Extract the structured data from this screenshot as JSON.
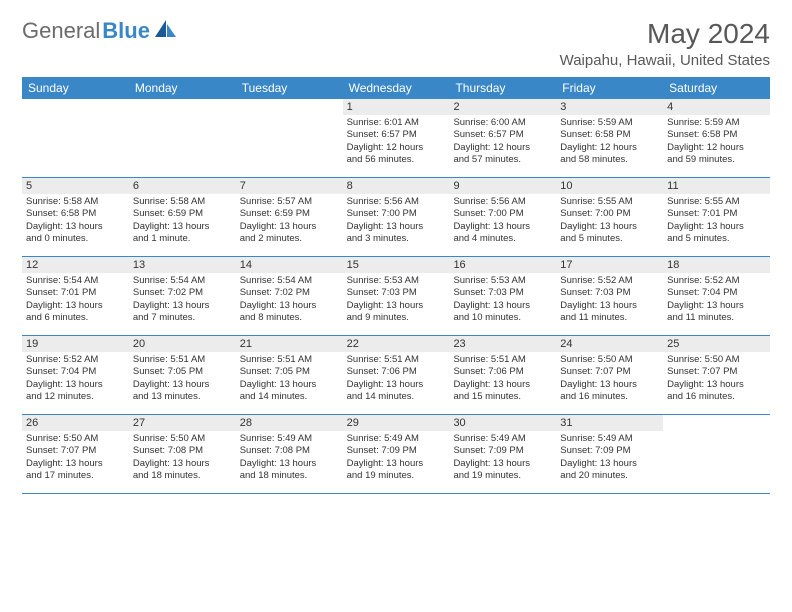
{
  "logo": {
    "part1": "General",
    "part2": "Blue"
  },
  "title": "May 2024",
  "location": "Waipahu, Hawaii, United States",
  "colors": {
    "header_bg": "#3a87c8",
    "daynum_bg": "#ececec",
    "text": "#333333",
    "title_text": "#585858"
  },
  "weekdays": [
    "Sunday",
    "Monday",
    "Tuesday",
    "Wednesday",
    "Thursday",
    "Friday",
    "Saturday"
  ],
  "weeks": [
    [
      {
        "n": "",
        "empty": true
      },
      {
        "n": "",
        "empty": true
      },
      {
        "n": "",
        "empty": true
      },
      {
        "n": "1",
        "sunrise": "Sunrise: 6:01 AM",
        "sunset": "Sunset: 6:57 PM",
        "d1": "Daylight: 12 hours",
        "d2": "and 56 minutes."
      },
      {
        "n": "2",
        "sunrise": "Sunrise: 6:00 AM",
        "sunset": "Sunset: 6:57 PM",
        "d1": "Daylight: 12 hours",
        "d2": "and 57 minutes."
      },
      {
        "n": "3",
        "sunrise": "Sunrise: 5:59 AM",
        "sunset": "Sunset: 6:58 PM",
        "d1": "Daylight: 12 hours",
        "d2": "and 58 minutes."
      },
      {
        "n": "4",
        "sunrise": "Sunrise: 5:59 AM",
        "sunset": "Sunset: 6:58 PM",
        "d1": "Daylight: 12 hours",
        "d2": "and 59 minutes."
      }
    ],
    [
      {
        "n": "5",
        "sunrise": "Sunrise: 5:58 AM",
        "sunset": "Sunset: 6:58 PM",
        "d1": "Daylight: 13 hours",
        "d2": "and 0 minutes."
      },
      {
        "n": "6",
        "sunrise": "Sunrise: 5:58 AM",
        "sunset": "Sunset: 6:59 PM",
        "d1": "Daylight: 13 hours",
        "d2": "and 1 minute."
      },
      {
        "n": "7",
        "sunrise": "Sunrise: 5:57 AM",
        "sunset": "Sunset: 6:59 PM",
        "d1": "Daylight: 13 hours",
        "d2": "and 2 minutes."
      },
      {
        "n": "8",
        "sunrise": "Sunrise: 5:56 AM",
        "sunset": "Sunset: 7:00 PM",
        "d1": "Daylight: 13 hours",
        "d2": "and 3 minutes."
      },
      {
        "n": "9",
        "sunrise": "Sunrise: 5:56 AM",
        "sunset": "Sunset: 7:00 PM",
        "d1": "Daylight: 13 hours",
        "d2": "and 4 minutes."
      },
      {
        "n": "10",
        "sunrise": "Sunrise: 5:55 AM",
        "sunset": "Sunset: 7:00 PM",
        "d1": "Daylight: 13 hours",
        "d2": "and 5 minutes."
      },
      {
        "n": "11",
        "sunrise": "Sunrise: 5:55 AM",
        "sunset": "Sunset: 7:01 PM",
        "d1": "Daylight: 13 hours",
        "d2": "and 5 minutes."
      }
    ],
    [
      {
        "n": "12",
        "sunrise": "Sunrise: 5:54 AM",
        "sunset": "Sunset: 7:01 PM",
        "d1": "Daylight: 13 hours",
        "d2": "and 6 minutes."
      },
      {
        "n": "13",
        "sunrise": "Sunrise: 5:54 AM",
        "sunset": "Sunset: 7:02 PM",
        "d1": "Daylight: 13 hours",
        "d2": "and 7 minutes."
      },
      {
        "n": "14",
        "sunrise": "Sunrise: 5:54 AM",
        "sunset": "Sunset: 7:02 PM",
        "d1": "Daylight: 13 hours",
        "d2": "and 8 minutes."
      },
      {
        "n": "15",
        "sunrise": "Sunrise: 5:53 AM",
        "sunset": "Sunset: 7:03 PM",
        "d1": "Daylight: 13 hours",
        "d2": "and 9 minutes."
      },
      {
        "n": "16",
        "sunrise": "Sunrise: 5:53 AM",
        "sunset": "Sunset: 7:03 PM",
        "d1": "Daylight: 13 hours",
        "d2": "and 10 minutes."
      },
      {
        "n": "17",
        "sunrise": "Sunrise: 5:52 AM",
        "sunset": "Sunset: 7:03 PM",
        "d1": "Daylight: 13 hours",
        "d2": "and 11 minutes."
      },
      {
        "n": "18",
        "sunrise": "Sunrise: 5:52 AM",
        "sunset": "Sunset: 7:04 PM",
        "d1": "Daylight: 13 hours",
        "d2": "and 11 minutes."
      }
    ],
    [
      {
        "n": "19",
        "sunrise": "Sunrise: 5:52 AM",
        "sunset": "Sunset: 7:04 PM",
        "d1": "Daylight: 13 hours",
        "d2": "and 12 minutes."
      },
      {
        "n": "20",
        "sunrise": "Sunrise: 5:51 AM",
        "sunset": "Sunset: 7:05 PM",
        "d1": "Daylight: 13 hours",
        "d2": "and 13 minutes."
      },
      {
        "n": "21",
        "sunrise": "Sunrise: 5:51 AM",
        "sunset": "Sunset: 7:05 PM",
        "d1": "Daylight: 13 hours",
        "d2": "and 14 minutes."
      },
      {
        "n": "22",
        "sunrise": "Sunrise: 5:51 AM",
        "sunset": "Sunset: 7:06 PM",
        "d1": "Daylight: 13 hours",
        "d2": "and 14 minutes."
      },
      {
        "n": "23",
        "sunrise": "Sunrise: 5:51 AM",
        "sunset": "Sunset: 7:06 PM",
        "d1": "Daylight: 13 hours",
        "d2": "and 15 minutes."
      },
      {
        "n": "24",
        "sunrise": "Sunrise: 5:50 AM",
        "sunset": "Sunset: 7:07 PM",
        "d1": "Daylight: 13 hours",
        "d2": "and 16 minutes."
      },
      {
        "n": "25",
        "sunrise": "Sunrise: 5:50 AM",
        "sunset": "Sunset: 7:07 PM",
        "d1": "Daylight: 13 hours",
        "d2": "and 16 minutes."
      }
    ],
    [
      {
        "n": "26",
        "sunrise": "Sunrise: 5:50 AM",
        "sunset": "Sunset: 7:07 PM",
        "d1": "Daylight: 13 hours",
        "d2": "and 17 minutes."
      },
      {
        "n": "27",
        "sunrise": "Sunrise: 5:50 AM",
        "sunset": "Sunset: 7:08 PM",
        "d1": "Daylight: 13 hours",
        "d2": "and 18 minutes."
      },
      {
        "n": "28",
        "sunrise": "Sunrise: 5:49 AM",
        "sunset": "Sunset: 7:08 PM",
        "d1": "Daylight: 13 hours",
        "d2": "and 18 minutes."
      },
      {
        "n": "29",
        "sunrise": "Sunrise: 5:49 AM",
        "sunset": "Sunset: 7:09 PM",
        "d1": "Daylight: 13 hours",
        "d2": "and 19 minutes."
      },
      {
        "n": "30",
        "sunrise": "Sunrise: 5:49 AM",
        "sunset": "Sunset: 7:09 PM",
        "d1": "Daylight: 13 hours",
        "d2": "and 19 minutes."
      },
      {
        "n": "31",
        "sunrise": "Sunrise: 5:49 AM",
        "sunset": "Sunset: 7:09 PM",
        "d1": "Daylight: 13 hours",
        "d2": "and 20 minutes."
      },
      {
        "n": "",
        "empty": true
      }
    ]
  ]
}
